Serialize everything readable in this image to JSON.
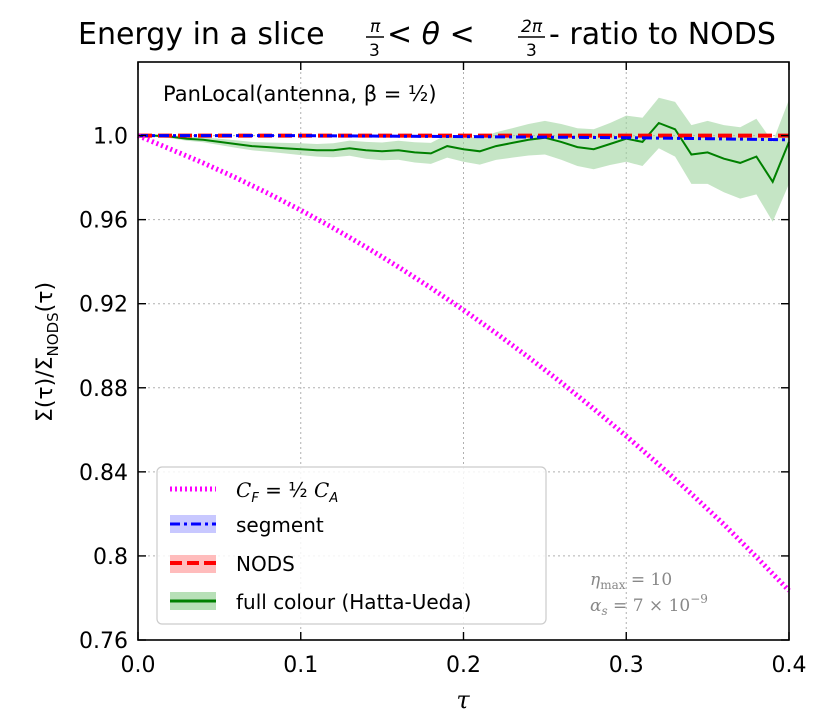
{
  "chart_data": {
    "type": "line",
    "title": "Energy in a slice π/3 < θ < 2π/3 - ratio to NODS",
    "title_parts": {
      "prefix": "Energy in a slice ",
      "frac1_num": "π",
      "frac1_den": "3",
      "mid": " < θ < ",
      "frac2_num": "2π",
      "frac2_den": "3",
      "suffix": " - ratio to NODS"
    },
    "xlabel": "τ",
    "ylabel": "Σ(τ)/Σ_NODS(τ)",
    "ylabel_parts": {
      "main": "Σ(τ)/Σ",
      "sub": "NODS",
      "tail": "(τ)"
    },
    "xlim": [
      0.0,
      0.4
    ],
    "ylim": [
      0.76,
      1.035
    ],
    "xticks": [
      0.0,
      0.1,
      0.2,
      0.3,
      0.4
    ],
    "xtick_labels": [
      "0.0",
      "0.1",
      "0.2",
      "0.3",
      "0.4"
    ],
    "yticks": [
      0.76,
      0.8,
      0.84,
      0.88,
      0.92,
      0.96,
      1.0
    ],
    "ytick_labels": [
      "0.76",
      "0.8",
      "0.84",
      "0.88",
      "0.92",
      "0.96",
      "1.0"
    ],
    "grid": true,
    "annotation": "PanLocal(antenna, β = ½)",
    "params": [
      "η_max = 10",
      "α_s = 7 × 10^-9"
    ],
    "params_parts": {
      "eta_sym": "η",
      "eta_sub": "max",
      "eta_val": " = 10",
      "alpha_sym": "α",
      "alpha_sub": "s",
      "alpha_val": " = 7 × 10",
      "alpha_exp": "−9"
    },
    "legend_position": "lower-left",
    "series": [
      {
        "name": "C_F = ½ C_A",
        "label_parts": {
          "c1": "C",
          "s1": "F",
          "mid": " = ½ ",
          "c2": "C",
          "s2": "A"
        },
        "color": "#ff00ff",
        "style": "dotted",
        "x": [
          0.0,
          0.02,
          0.04,
          0.06,
          0.08,
          0.1,
          0.12,
          0.14,
          0.16,
          0.18,
          0.2,
          0.22,
          0.24,
          0.26,
          0.28,
          0.3,
          0.32,
          0.34,
          0.36,
          0.38,
          0.4
        ],
        "y": [
          1.0,
          0.9935,
          0.987,
          0.98,
          0.9725,
          0.9645,
          0.956,
          0.947,
          0.9375,
          0.9275,
          0.917,
          0.906,
          0.8945,
          0.8825,
          0.87,
          0.857,
          0.8435,
          0.8295,
          0.815,
          0.7995,
          0.7835
        ]
      },
      {
        "name": "segment",
        "color": "#0000ff",
        "style": "dashdot",
        "x": [
          0.0,
          0.1,
          0.2,
          0.3,
          0.35,
          0.4
        ],
        "y": [
          1.0,
          1.0,
          0.9995,
          0.999,
          0.9985,
          0.998
        ]
      },
      {
        "name": "NODS",
        "color": "#ff0000",
        "style": "dashed",
        "x": [
          0.0,
          0.4
        ],
        "y": [
          1.0,
          1.0
        ]
      },
      {
        "name": "full colour (Hatta-Ueda)",
        "color": "#008000",
        "band_color": "#9fd49f",
        "style": "solid",
        "x": [
          0.0,
          0.01,
          0.02,
          0.03,
          0.04,
          0.05,
          0.06,
          0.07,
          0.08,
          0.09,
          0.1,
          0.11,
          0.12,
          0.13,
          0.14,
          0.15,
          0.16,
          0.17,
          0.18,
          0.19,
          0.2,
          0.21,
          0.22,
          0.23,
          0.24,
          0.25,
          0.26,
          0.27,
          0.28,
          0.29,
          0.3,
          0.31,
          0.32,
          0.33,
          0.34,
          0.35,
          0.36,
          0.37,
          0.38,
          0.39,
          0.4
        ],
        "y": [
          1.0,
          1.0,
          0.9995,
          0.9985,
          0.998,
          0.997,
          0.996,
          0.995,
          0.9945,
          0.994,
          0.9935,
          0.993,
          0.993,
          0.994,
          0.993,
          0.9925,
          0.993,
          0.992,
          0.9915,
          0.995,
          0.9935,
          0.9925,
          0.995,
          0.9965,
          0.998,
          0.999,
          0.997,
          0.9945,
          0.9935,
          0.996,
          0.9985,
          0.997,
          1.006,
          1.003,
          0.991,
          0.992,
          0.989,
          0.987,
          0.99,
          0.978,
          0.997
        ],
        "band_halfwidth": [
          0.0,
          0.0005,
          0.0008,
          0.001,
          0.0012,
          0.0015,
          0.0018,
          0.002,
          0.0022,
          0.0025,
          0.0028,
          0.003,
          0.0033,
          0.0036,
          0.004,
          0.0042,
          0.0045,
          0.0048,
          0.005,
          0.0055,
          0.006,
          0.0063,
          0.0066,
          0.007,
          0.0075,
          0.008,
          0.0085,
          0.009,
          0.0095,
          0.01,
          0.011,
          0.0115,
          0.012,
          0.013,
          0.014,
          0.015,
          0.016,
          0.017,
          0.018,
          0.019,
          0.02
        ]
      }
    ]
  }
}
